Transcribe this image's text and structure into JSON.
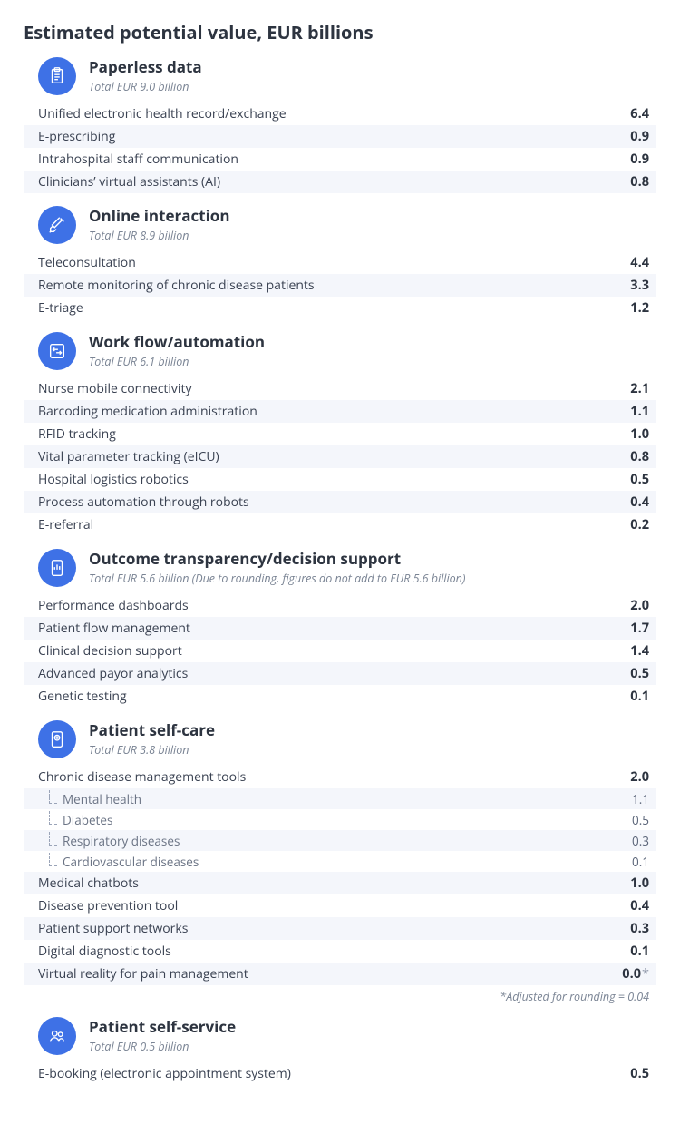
{
  "title": "Estimated potential value, EUR billions",
  "colors": {
    "icon_bg": "#3e71e6",
    "icon_stroke": "#ffffff",
    "stripe_bg": "#f4f6fb",
    "text_primary": "#2d3440",
    "text_secondary": "#7a8494"
  },
  "categories": [
    {
      "icon": "clipboard",
      "title": "Paperless data",
      "subtitle": "Total EUR 9.0 billion",
      "rows": [
        {
          "label": "Unified electronic health record/exchange",
          "value": "6.4",
          "striped": false
        },
        {
          "label": "E-prescribing",
          "value": "0.9",
          "striped": true
        },
        {
          "label": "Intrahospital staff communication",
          "value": "0.9",
          "striped": false
        },
        {
          "label": "Clinicians’ virtual assistants (AI)",
          "value": "0.8",
          "striped": true
        }
      ]
    },
    {
      "icon": "syringe",
      "title": "Online interaction",
      "subtitle": "Total EUR 8.9 billion",
      "rows": [
        {
          "label": "Teleconsultation",
          "value": "4.4",
          "striped": false
        },
        {
          "label": "Remote monitoring of chronic disease patients",
          "value": "3.3",
          "striped": true
        },
        {
          "label": "E-triage",
          "value": "1.2",
          "striped": false
        }
      ]
    },
    {
      "icon": "arrows",
      "title": "Work flow/automation",
      "subtitle": "Total EUR 6.1 billion",
      "rows": [
        {
          "label": "Nurse mobile connectivity",
          "value": "2.1",
          "striped": false
        },
        {
          "label": "Barcoding medication administration",
          "value": "1.1",
          "striped": true
        },
        {
          "label": "RFID tracking",
          "value": "1.0",
          "striped": false
        },
        {
          "label": "Vital parameter tracking (eICU)",
          "value": "0.8",
          "striped": true
        },
        {
          "label": "Hospital logistics robotics",
          "value": "0.5",
          "striped": false
        },
        {
          "label": "Process automation through robots",
          "value": "0.4",
          "striped": true
        },
        {
          "label": "E-referral",
          "value": "0.2",
          "striped": false
        }
      ]
    },
    {
      "icon": "tablet-chart",
      "title": "Outcome transparency/decision support",
      "subtitle": "Total EUR 5.6 billion (Due to rounding, figures do not add to EUR 5.6 billion)",
      "rows": [
        {
          "label": "Performance dashboards",
          "value": "2.0",
          "striped": false
        },
        {
          "label": "Patient flow management",
          "value": "1.7",
          "striped": true
        },
        {
          "label": "Clinical decision support",
          "value": "1.4",
          "striped": false
        },
        {
          "label": "Advanced payor analytics",
          "value": "0.5",
          "striped": true
        },
        {
          "label": "Genetic testing",
          "value": "0.1",
          "striped": false
        }
      ]
    },
    {
      "icon": "health-app",
      "title": "Patient self-care",
      "subtitle": "Total EUR 3.8 billion",
      "rows": [
        {
          "label": "Chronic disease management tools",
          "value": "2.0",
          "striped": false,
          "subrows": [
            {
              "label": "Mental health",
              "value": "1.1",
              "striped": true
            },
            {
              "label": "Diabetes",
              "value": "0.5",
              "striped": false
            },
            {
              "label": "Respiratory diseases",
              "value": "0.3",
              "striped": true
            },
            {
              "label": "Cardiovascular diseases",
              "value": "0.1",
              "striped": false
            }
          ]
        },
        {
          "label": "Medical chatbots",
          "value": "1.0",
          "striped": true
        },
        {
          "label": "Disease prevention tool",
          "value": "0.4",
          "striped": false
        },
        {
          "label": "Patient support networks",
          "value": "0.3",
          "striped": true
        },
        {
          "label": "Digital diagnostic tools",
          "value": "0.1",
          "striped": false
        },
        {
          "label": "Virtual reality for pain management",
          "value": "0.0",
          "star": true,
          "striped": true
        }
      ],
      "footnote": "*Adjusted for rounding = 0.04"
    },
    {
      "icon": "people",
      "title": "Patient self-service",
      "subtitle": "Total EUR 0.5 billion",
      "rows": [
        {
          "label": "E-booking (electronic appointment system)",
          "value": "0.5",
          "striped": false
        }
      ]
    }
  ]
}
